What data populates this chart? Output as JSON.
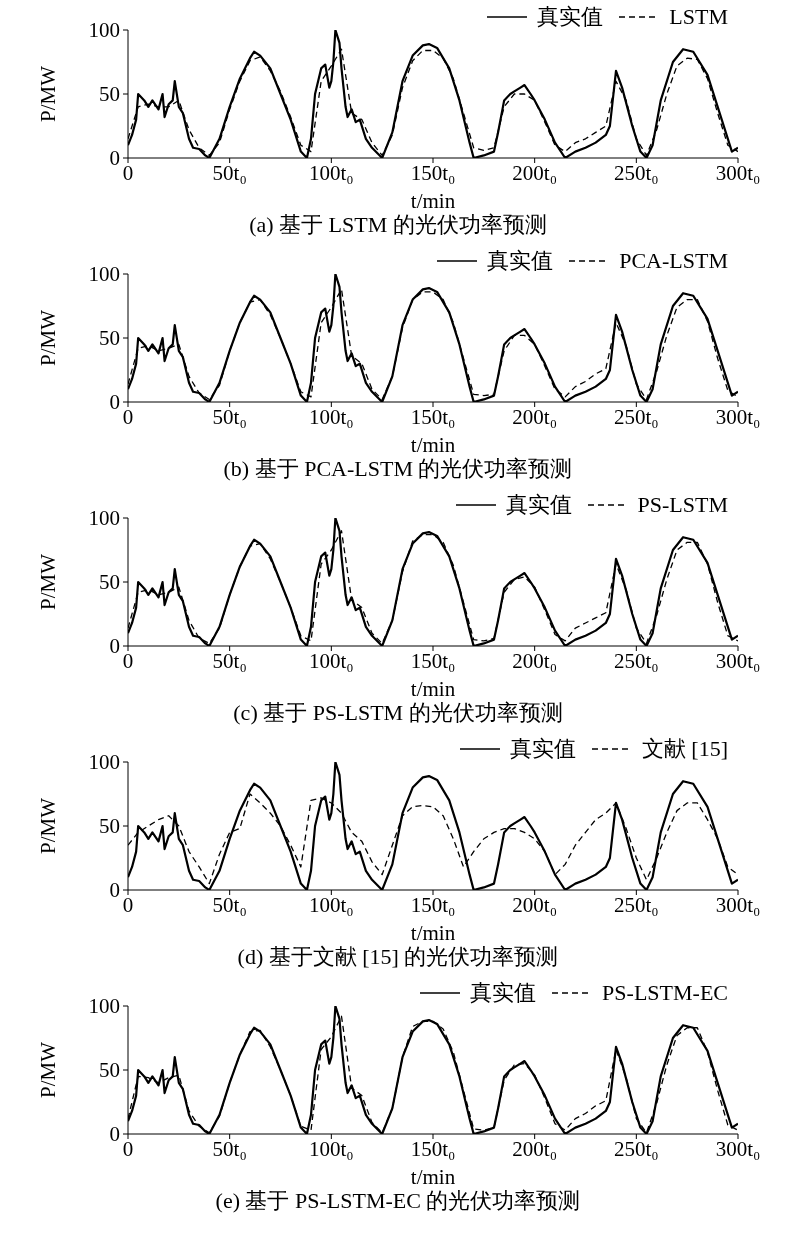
{
  "chart_data": [
    {
      "type": "line",
      "title": "(a) 基于 LSTM 的光伏功率预测",
      "xlabel": "t/min",
      "ylabel": "P/MW",
      "xlim": [
        0,
        300
      ],
      "ylim": [
        0,
        100
      ],
      "yticks": [
        0,
        50,
        100
      ],
      "xticks": [
        {
          "value": 0,
          "label": "0"
        },
        {
          "value": 50,
          "label": "50t₀"
        },
        {
          "value": 100,
          "label": "100t₀"
        },
        {
          "value": 150,
          "label": "150t₀"
        },
        {
          "value": 200,
          "label": "200t₀"
        },
        {
          "value": 250,
          "label": "250t₀"
        },
        {
          "value": 300,
          "label": "300t₀"
        }
      ],
      "grid": false,
      "legend": "top right",
      "marker": "none",
      "series": [
        {
          "name": "真实值",
          "color": "#000000",
          "line_style": "solid",
          "x": [
            0,
            2,
            4,
            5,
            8,
            10,
            12,
            15,
            17,
            18,
            20,
            22,
            23,
            25,
            27,
            30,
            32,
            35,
            38,
            40,
            45,
            50,
            55,
            60,
            62,
            65,
            70,
            75,
            80,
            82,
            85,
            88,
            90,
            92,
            95,
            97,
            99,
            100,
            101,
            102,
            104,
            105,
            107,
            108,
            110,
            112,
            114,
            117,
            120,
            125,
            130,
            135,
            140,
            145,
            148,
            152,
            158,
            163,
            168,
            170,
            175,
            180,
            182,
            185,
            188,
            190,
            193,
            195,
            198,
            200,
            205,
            210,
            215,
            220,
            225,
            230,
            235,
            237,
            240,
            243,
            248,
            252,
            255,
            258,
            262,
            268,
            273,
            278,
            285,
            292,
            297,
            300
          ],
          "values": [
            10,
            18,
            30,
            50,
            45,
            40,
            45,
            38,
            50,
            32,
            42,
            45,
            60,
            40,
            35,
            15,
            8,
            7,
            2,
            0,
            15,
            40,
            62,
            78,
            83,
            80,
            70,
            50,
            30,
            20,
            5,
            0,
            15,
            50,
            70,
            73,
            55,
            60,
            75,
            100,
            90,
            70,
            40,
            32,
            38,
            28,
            30,
            15,
            8,
            0,
            20,
            60,
            80,
            88,
            89,
            86,
            70,
            45,
            12,
            0,
            2,
            5,
            20,
            45,
            50,
            52,
            55,
            57,
            50,
            45,
            30,
            12,
            0,
            5,
            8,
            12,
            18,
            25,
            68,
            55,
            25,
            5,
            0,
            10,
            45,
            75,
            85,
            83,
            65,
            30,
            5,
            8
          ]
        },
        {
          "name": "LSTM",
          "color": "#000000",
          "line_style": "dashed",
          "x": [
            0,
            5,
            10,
            15,
            20,
            25,
            30,
            35,
            40,
            45,
            50,
            55,
            60,
            65,
            70,
            75,
            80,
            85,
            90,
            95,
            100,
            105,
            110,
            115,
            120,
            125,
            130,
            135,
            140,
            145,
            150,
            155,
            160,
            165,
            170,
            175,
            180,
            185,
            190,
            195,
            200,
            205,
            210,
            215,
            220,
            225,
            230,
            235,
            240,
            245,
            250,
            255,
            260,
            265,
            270,
            275,
            280,
            285,
            290,
            295,
            300
          ],
          "values": [
            15,
            40,
            42,
            40,
            40,
            45,
            22,
            8,
            2,
            12,
            38,
            60,
            76,
            79,
            68,
            52,
            32,
            10,
            5,
            60,
            72,
            85,
            35,
            30,
            12,
            2,
            18,
            55,
            76,
            84,
            84,
            78,
            62,
            35,
            8,
            6,
            8,
            40,
            50,
            50,
            45,
            28,
            10,
            5,
            12,
            15,
            20,
            25,
            60,
            45,
            15,
            2,
            22,
            50,
            72,
            78,
            77,
            62,
            35,
            10,
            5
          ]
        }
      ]
    },
    {
      "type": "line",
      "title": "(b) 基于 PCA-LSTM 的光伏功率预测",
      "xlabel": "t/min",
      "ylabel": "P/MW",
      "xlim": [
        0,
        300
      ],
      "ylim": [
        0,
        100
      ],
      "yticks": [
        0,
        50,
        100
      ],
      "xticks": [
        {
          "value": 0,
          "label": "0"
        },
        {
          "value": 50,
          "label": "50t₀"
        },
        {
          "value": 100,
          "label": "100t₀"
        },
        {
          "value": 150,
          "label": "150t₀"
        },
        {
          "value": 200,
          "label": "200t₀"
        },
        {
          "value": 250,
          "label": "250t₀"
        },
        {
          "value": 300,
          "label": "300t₀"
        }
      ],
      "grid": false,
      "legend": "top right",
      "marker": "none",
      "series": [
        {
          "name": "真实值",
          "color": "#000000",
          "line_style": "solid",
          "x": [
            0,
            2,
            4,
            5,
            8,
            10,
            12,
            15,
            17,
            18,
            20,
            22,
            23,
            25,
            27,
            30,
            32,
            35,
            38,
            40,
            45,
            50,
            55,
            60,
            62,
            65,
            70,
            75,
            80,
            82,
            85,
            88,
            90,
            92,
            95,
            97,
            99,
            100,
            101,
            102,
            104,
            105,
            107,
            108,
            110,
            112,
            114,
            117,
            120,
            125,
            130,
            135,
            140,
            145,
            148,
            152,
            158,
            163,
            168,
            170,
            175,
            180,
            182,
            185,
            188,
            190,
            193,
            195,
            198,
            200,
            205,
            210,
            215,
            220,
            225,
            230,
            235,
            237,
            240,
            243,
            248,
            252,
            255,
            258,
            262,
            268,
            273,
            278,
            285,
            292,
            297,
            300
          ],
          "values": [
            10,
            18,
            30,
            50,
            45,
            40,
            45,
            38,
            50,
            32,
            42,
            45,
            60,
            40,
            35,
            15,
            8,
            7,
            2,
            0,
            15,
            40,
            62,
            78,
            83,
            80,
            70,
            50,
            30,
            20,
            5,
            0,
            15,
            50,
            70,
            73,
            55,
            60,
            75,
            100,
            90,
            70,
            40,
            32,
            38,
            28,
            30,
            15,
            8,
            0,
            20,
            60,
            80,
            88,
            89,
            86,
            70,
            45,
            12,
            0,
            2,
            5,
            20,
            45,
            50,
            52,
            55,
            57,
            50,
            45,
            30,
            12,
            0,
            5,
            8,
            12,
            18,
            25,
            68,
            55,
            25,
            5,
            0,
            10,
            45,
            75,
            85,
            83,
            65,
            30,
            5,
            8
          ]
        },
        {
          "name": "PCA-LSTM",
          "color": "#000000",
          "line_style": "dashed",
          "x": [
            0,
            5,
            10,
            15,
            20,
            25,
            30,
            35,
            40,
            45,
            50,
            55,
            60,
            65,
            70,
            75,
            80,
            85,
            90,
            95,
            100,
            105,
            110,
            115,
            120,
            125,
            130,
            135,
            140,
            145,
            150,
            155,
            160,
            165,
            170,
            175,
            180,
            185,
            190,
            195,
            200,
            205,
            210,
            215,
            220,
            225,
            230,
            235,
            240,
            245,
            250,
            255,
            260,
            265,
            270,
            275,
            280,
            285,
            290,
            295,
            300
          ],
          "values": [
            14,
            42,
            44,
            40,
            42,
            45,
            20,
            7,
            2,
            13,
            40,
            62,
            78,
            80,
            68,
            50,
            30,
            8,
            4,
            62,
            74,
            88,
            36,
            30,
            10,
            2,
            20,
            58,
            80,
            86,
            86,
            80,
            62,
            34,
            6,
            5,
            6,
            40,
            52,
            52,
            45,
            28,
            10,
            4,
            12,
            16,
            22,
            26,
            62,
            44,
            14,
            2,
            24,
            52,
            74,
            80,
            80,
            63,
            34,
            9,
            4
          ]
        }
      ]
    },
    {
      "type": "line",
      "title": "(c) 基于 PS-LSTM 的光伏功率预测",
      "xlabel": "t/min",
      "ylabel": "P/MW",
      "xlim": [
        0,
        300
      ],
      "ylim": [
        0,
        100
      ],
      "yticks": [
        0,
        50,
        100
      ],
      "xticks": [
        {
          "value": 0,
          "label": "0"
        },
        {
          "value": 50,
          "label": "50t₀"
        },
        {
          "value": 100,
          "label": "100t₀"
        },
        {
          "value": 150,
          "label": "150t₀"
        },
        {
          "value": 200,
          "label": "200t₀"
        },
        {
          "value": 250,
          "label": "250t₀"
        },
        {
          "value": 300,
          "label": "300t₀"
        }
      ],
      "grid": false,
      "legend": "top right",
      "marker": "none",
      "series": [
        {
          "name": "真实值",
          "color": "#000000",
          "line_style": "solid",
          "x": [
            0,
            2,
            4,
            5,
            8,
            10,
            12,
            15,
            17,
            18,
            20,
            22,
            23,
            25,
            27,
            30,
            32,
            35,
            38,
            40,
            45,
            50,
            55,
            60,
            62,
            65,
            70,
            75,
            80,
            82,
            85,
            88,
            90,
            92,
            95,
            97,
            99,
            100,
            101,
            102,
            104,
            105,
            107,
            108,
            110,
            112,
            114,
            117,
            120,
            125,
            130,
            135,
            140,
            145,
            148,
            152,
            158,
            163,
            168,
            170,
            175,
            180,
            182,
            185,
            188,
            190,
            193,
            195,
            198,
            200,
            205,
            210,
            215,
            220,
            225,
            230,
            235,
            237,
            240,
            243,
            248,
            252,
            255,
            258,
            262,
            268,
            273,
            278,
            285,
            292,
            297,
            300
          ],
          "values": [
            10,
            18,
            30,
            50,
            45,
            40,
            45,
            38,
            50,
            32,
            42,
            45,
            60,
            40,
            35,
            15,
            8,
            7,
            2,
            0,
            15,
            40,
            62,
            78,
            83,
            80,
            70,
            50,
            30,
            20,
            5,
            0,
            15,
            50,
            70,
            73,
            55,
            60,
            75,
            100,
            90,
            70,
            40,
            32,
            38,
            28,
            30,
            15,
            8,
            0,
            20,
            60,
            80,
            88,
            89,
            86,
            70,
            45,
            12,
            0,
            2,
            5,
            20,
            45,
            50,
            52,
            55,
            57,
            50,
            45,
            30,
            12,
            0,
            5,
            8,
            12,
            18,
            25,
            68,
            55,
            25,
            5,
            0,
            10,
            45,
            75,
            85,
            83,
            65,
            30,
            5,
            8
          ]
        },
        {
          "name": "PS-LSTM",
          "color": "#000000",
          "line_style": "dashed",
          "x": [
            0,
            5,
            10,
            15,
            20,
            25,
            30,
            35,
            40,
            45,
            50,
            55,
            60,
            65,
            70,
            75,
            80,
            85,
            90,
            95,
            100,
            105,
            110,
            115,
            120,
            125,
            130,
            135,
            140,
            145,
            150,
            155,
            160,
            165,
            170,
            175,
            180,
            185,
            190,
            195,
            200,
            205,
            210,
            215,
            220,
            225,
            230,
            235,
            240,
            245,
            250,
            255,
            260,
            265,
            270,
            275,
            280,
            285,
            290,
            295,
            300
          ],
          "values": [
            14,
            42,
            44,
            40,
            42,
            46,
            20,
            6,
            2,
            14,
            40,
            62,
            78,
            80,
            68,
            50,
            30,
            8,
            4,
            64,
            75,
            90,
            36,
            30,
            10,
            2,
            20,
            58,
            82,
            87,
            87,
            81,
            63,
            34,
            5,
            4,
            6,
            42,
            52,
            54,
            46,
            28,
            9,
            4,
            14,
            18,
            22,
            26,
            64,
            44,
            14,
            2,
            24,
            52,
            75,
            81,
            81,
            64,
            34,
            8,
            4
          ]
        }
      ]
    },
    {
      "type": "line",
      "title": "(d) 基于文献 [15] 的光伏功率预测",
      "xlabel": "t/min",
      "ylabel": "P/MW",
      "xlim": [
        0,
        300
      ],
      "ylim": [
        0,
        100
      ],
      "yticks": [
        0,
        50,
        100
      ],
      "xticks": [
        {
          "value": 0,
          "label": "0"
        },
        {
          "value": 50,
          "label": "50t₀"
        },
        {
          "value": 100,
          "label": "100t₀"
        },
        {
          "value": 150,
          "label": "150t₀"
        },
        {
          "value": 200,
          "label": "200t₀"
        },
        {
          "value": 250,
          "label": "250t₀"
        },
        {
          "value": 300,
          "label": "300t₀"
        }
      ],
      "grid": false,
      "legend": "top right",
      "marker": "none",
      "series": [
        {
          "name": "真实值",
          "color": "#000000",
          "line_style": "solid",
          "x": [
            0,
            2,
            4,
            5,
            8,
            10,
            12,
            15,
            17,
            18,
            20,
            22,
            23,
            25,
            27,
            30,
            32,
            35,
            38,
            40,
            45,
            50,
            55,
            60,
            62,
            65,
            70,
            75,
            80,
            82,
            85,
            88,
            90,
            92,
            95,
            97,
            99,
            100,
            101,
            102,
            104,
            105,
            107,
            108,
            110,
            112,
            114,
            117,
            120,
            125,
            130,
            135,
            140,
            145,
            148,
            152,
            158,
            163,
            168,
            170,
            175,
            180,
            182,
            185,
            188,
            190,
            193,
            195,
            198,
            200,
            205,
            210,
            215,
            220,
            225,
            230,
            235,
            237,
            240,
            243,
            248,
            252,
            255,
            258,
            262,
            268,
            273,
            278,
            285,
            292,
            297,
            300
          ],
          "values": [
            10,
            18,
            30,
            50,
            45,
            40,
            45,
            38,
            50,
            32,
            42,
            45,
            60,
            40,
            35,
            15,
            8,
            7,
            2,
            0,
            15,
            40,
            62,
            78,
            83,
            80,
            70,
            50,
            30,
            20,
            5,
            0,
            15,
            50,
            70,
            73,
            55,
            60,
            75,
            100,
            90,
            70,
            40,
            32,
            38,
            28,
            30,
            15,
            8,
            0,
            20,
            60,
            80,
            88,
            89,
            86,
            70,
            45,
            12,
            0,
            2,
            5,
            20,
            45,
            50,
            52,
            55,
            57,
            50,
            45,
            30,
            12,
            0,
            5,
            8,
            12,
            18,
            25,
            68,
            55,
            25,
            5,
            0,
            10,
            45,
            75,
            85,
            83,
            65,
            30,
            5,
            8
          ]
        },
        {
          "name": "文献 [15]",
          "color": "#000000",
          "line_style": "dashed",
          "x": [
            0,
            5,
            10,
            15,
            20,
            25,
            30,
            35,
            40,
            45,
            50,
            55,
            60,
            65,
            70,
            75,
            80,
            85,
            90,
            95,
            100,
            105,
            110,
            115,
            120,
            125,
            130,
            135,
            140,
            145,
            150,
            155,
            160,
            165,
            170,
            175,
            180,
            185,
            190,
            195,
            200,
            205,
            210,
            215,
            220,
            225,
            230,
            235,
            240,
            245,
            250,
            255,
            260,
            265,
            270,
            275,
            280,
            285,
            290,
            295,
            300
          ],
          "values": [
            35,
            45,
            50,
            55,
            58,
            50,
            30,
            18,
            5,
            28,
            45,
            48,
            75,
            68,
            60,
            50,
            35,
            18,
            70,
            72,
            68,
            60,
            45,
            38,
            22,
            12,
            35,
            58,
            65,
            66,
            65,
            58,
            40,
            18,
            30,
            40,
            45,
            48,
            48,
            45,
            40,
            30,
            12,
            20,
            35,
            45,
            55,
            60,
            68,
            48,
            25,
            8,
            25,
            45,
            62,
            68,
            68,
            55,
            40,
            18,
            12
          ]
        }
      ]
    },
    {
      "type": "line",
      "title": "(e) 基于 PS-LSTM-EC 的光伏功率预测",
      "xlabel": "t/min",
      "ylabel": "P/MW",
      "xlim": [
        0,
        300
      ],
      "ylim": [
        0,
        100
      ],
      "yticks": [
        0,
        50,
        100
      ],
      "xticks": [
        {
          "value": 0,
          "label": "0"
        },
        {
          "value": 50,
          "label": "50t₀"
        },
        {
          "value": 100,
          "label": "100t₀"
        },
        {
          "value": 150,
          "label": "150t₀"
        },
        {
          "value": 200,
          "label": "200t₀"
        },
        {
          "value": 250,
          "label": "250t₀"
        },
        {
          "value": 300,
          "label": "300t₀"
        }
      ],
      "grid": false,
      "legend": "top right",
      "marker": "none",
      "series": [
        {
          "name": "真实值",
          "color": "#000000",
          "line_style": "solid",
          "x": [
            0,
            2,
            4,
            5,
            8,
            10,
            12,
            15,
            17,
            18,
            20,
            22,
            23,
            25,
            27,
            30,
            32,
            35,
            38,
            40,
            45,
            50,
            55,
            60,
            62,
            65,
            70,
            75,
            80,
            82,
            85,
            88,
            90,
            92,
            95,
            97,
            99,
            100,
            101,
            102,
            104,
            105,
            107,
            108,
            110,
            112,
            114,
            117,
            120,
            125,
            130,
            135,
            140,
            145,
            148,
            152,
            158,
            163,
            168,
            170,
            175,
            180,
            182,
            185,
            188,
            190,
            193,
            195,
            198,
            200,
            205,
            210,
            215,
            220,
            225,
            230,
            235,
            237,
            240,
            243,
            248,
            252,
            255,
            258,
            262,
            268,
            273,
            278,
            285,
            292,
            297,
            300
          ],
          "values": [
            10,
            18,
            30,
            50,
            45,
            40,
            45,
            38,
            50,
            32,
            42,
            45,
            60,
            40,
            35,
            15,
            8,
            7,
            2,
            0,
            15,
            40,
            62,
            78,
            83,
            80,
            70,
            50,
            30,
            20,
            5,
            0,
            15,
            50,
            70,
            73,
            55,
            60,
            75,
            100,
            90,
            70,
            40,
            32,
            38,
            28,
            30,
            15,
            8,
            0,
            20,
            60,
            80,
            88,
            89,
            86,
            70,
            45,
            12,
            0,
            2,
            5,
            20,
            45,
            50,
            52,
            55,
            57,
            50,
            45,
            30,
            12,
            0,
            5,
            8,
            12,
            18,
            25,
            68,
            55,
            25,
            5,
            0,
            10,
            45,
            75,
            85,
            83,
            65,
            30,
            5,
            8
          ]
        },
        {
          "name": "PS-LSTM-EC",
          "color": "#000000",
          "line_style": "dashed",
          "x": [
            0,
            5,
            10,
            15,
            20,
            25,
            30,
            35,
            40,
            45,
            50,
            55,
            60,
            65,
            70,
            75,
            80,
            85,
            90,
            95,
            100,
            105,
            110,
            115,
            120,
            125,
            130,
            135,
            140,
            145,
            150,
            155,
            160,
            165,
            170,
            175,
            180,
            185,
            190,
            195,
            200,
            205,
            210,
            215,
            220,
            225,
            230,
            235,
            240,
            245,
            250,
            255,
            260,
            265,
            270,
            275,
            280,
            285,
            290,
            295,
            300
          ],
          "values": [
            12,
            45,
            44,
            40,
            44,
            46,
            18,
            6,
            1,
            14,
            40,
            62,
            80,
            81,
            68,
            50,
            30,
            6,
            3,
            66,
            76,
            92,
            36,
            30,
            9,
            1,
            20,
            60,
            84,
            88,
            88,
            82,
            64,
            34,
            4,
            3,
            5,
            42,
            54,
            55,
            46,
            28,
            8,
            3,
            12,
            16,
            22,
            26,
            66,
            44,
            12,
            1,
            24,
            54,
            77,
            83,
            83,
            64,
            34,
            7,
            3
          ]
        }
      ]
    }
  ]
}
